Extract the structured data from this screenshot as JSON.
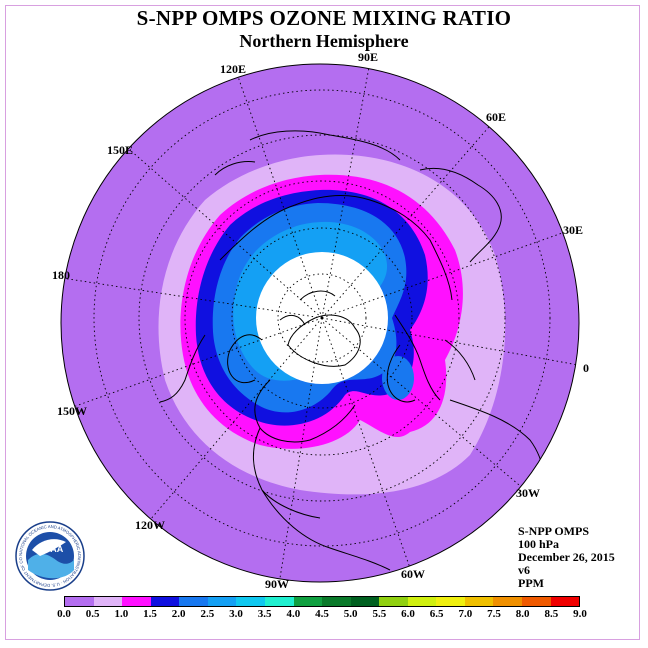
{
  "title": "S-NPP OMPS OZONE MIXING RATIO",
  "subtitle": "Northern Hemisphere",
  "longitude_labels": [
    "90E",
    "60E",
    "30E",
    "0",
    "30W",
    "60W",
    "90W",
    "120W",
    "150W",
    "180",
    "150E",
    "120E"
  ],
  "info": {
    "instrument": "S-NPP OMPS",
    "level": "100 hPa",
    "date": "December 26, 2015",
    "version": "v6",
    "units": "PPM"
  },
  "colorbar": {
    "ticks": [
      "0.0",
      "0.5",
      "1.0",
      "1.5",
      "2.0",
      "2.5",
      "3.0",
      "3.5",
      "4.0",
      "4.5",
      "5.0",
      "5.5",
      "6.0",
      "6.5",
      "7.0",
      "7.5",
      "8.0",
      "8.5",
      "9.0"
    ],
    "colors": [
      "#b46ef0",
      "#e0b4f8",
      "#ff10ff",
      "#1010e0",
      "#1878f0",
      "#14a0f4",
      "#10c8f0",
      "#20f0d0",
      "#10a040",
      "#0a7a2a",
      "#006020",
      "#90d010",
      "#d0f010",
      "#f0f010",
      "#f0c000",
      "#f09000",
      "#f05a00",
      "#f00000",
      "#905a40"
    ]
  },
  "logo": {
    "text": "NOAA",
    "ring_text": "NATIONAL OCEANIC AND ATMOSPHERIC ADMINISTRATION · U.S. DEPARTMENT OF COMMERCE"
  }
}
